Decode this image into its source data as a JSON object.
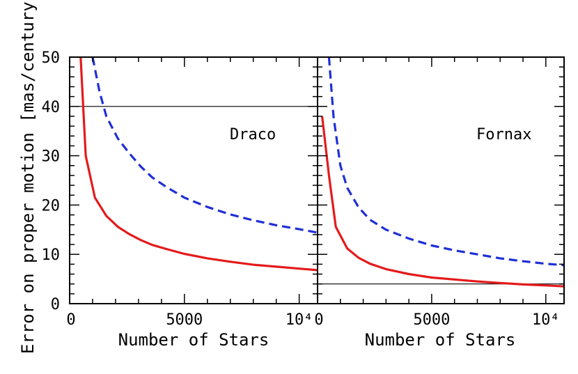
{
  "chart_data": {
    "type": "line",
    "shared": {
      "ylabel": "Error on proper motion [mas/century]",
      "ylim": [
        0,
        50
      ],
      "yticks": [
        0,
        10,
        20,
        30,
        40,
        50
      ],
      "ytick_labels": [
        "0",
        "10",
        "20",
        "30",
        "40",
        "50"
      ],
      "xlim": [
        0,
        10800
      ],
      "xticks": [
        0,
        5000,
        10000
      ],
      "xtick_labels_left": [
        "0",
        "5000",
        "10⁴"
      ],
      "xtick_labels_right": [
        "0",
        "5000",
        "10⁴"
      ],
      "xlabel": "Number of Stars"
    },
    "panels": [
      {
        "name": "Draco",
        "label": "Draco",
        "hline": 40,
        "series": [
          {
            "name": "solid-red",
            "color": "#e41a1c",
            "style": "solid",
            "points": [
              [
                480,
                50
              ],
              [
                700,
                30
              ],
              [
                1100,
                21.5
              ],
              [
                1600,
                17.8
              ],
              [
                2100,
                15.6
              ],
              [
                2600,
                14.1
              ],
              [
                3100,
                12.9
              ],
              [
                3600,
                11.9
              ],
              [
                4200,
                11.1
              ],
              [
                5000,
                10.1
              ],
              [
                6000,
                9.2
              ],
              [
                7000,
                8.5
              ],
              [
                8000,
                7.9
              ],
              [
                9000,
                7.5
              ],
              [
                10000,
                7.1
              ],
              [
                10800,
                6.8
              ]
            ]
          },
          {
            "name": "dashed-blue",
            "color": "#1f2fd6",
            "style": "dashed",
            "points": [
              [
                1000,
                50
              ],
              [
                1300,
                43
              ],
              [
                1600,
                38
              ],
              [
                2100,
                33.5
              ],
              [
                2600,
                30.5
              ],
              [
                3100,
                27.8
              ],
              [
                3600,
                25.6
              ],
              [
                4200,
                23.7
              ],
              [
                5000,
                21.5
              ],
              [
                6000,
                19.6
              ],
              [
                7000,
                18.1
              ],
              [
                8000,
                16.9
              ],
              [
                9000,
                15.9
              ],
              [
                10000,
                15.1
              ],
              [
                10800,
                14.4
              ]
            ]
          }
        ]
      },
      {
        "name": "Fornax",
        "label": "Fornax",
        "hline": 4,
        "series": [
          {
            "name": "solid-red",
            "color": "#e41a1c",
            "style": "solid",
            "points": [
              [
                200,
                38
              ],
              [
                500,
                26
              ],
              [
                800,
                15.6
              ],
              [
                1300,
                11.2
              ],
              [
                1800,
                9.3
              ],
              [
                2300,
                8.1
              ],
              [
                3000,
                7.0
              ],
              [
                4000,
                6.0
              ],
              [
                5000,
                5.3
              ],
              [
                6000,
                4.9
              ],
              [
                7000,
                4.5
              ],
              [
                8000,
                4.2
              ],
              [
                9000,
                3.9
              ],
              [
                10000,
                3.7
              ],
              [
                10800,
                3.5
              ]
            ]
          },
          {
            "name": "dashed-blue",
            "color": "#1f2fd6",
            "style": "dashed",
            "points": [
              [
                500,
                50
              ],
              [
                700,
                38
              ],
              [
                1000,
                28
              ],
              [
                1300,
                23.5
              ],
              [
                1800,
                19.5
              ],
              [
                2300,
                17.0
              ],
              [
                3000,
                15.0
              ],
              [
                4000,
                13.2
              ],
              [
                5000,
                11.8
              ],
              [
                6000,
                10.8
              ],
              [
                7000,
                10.0
              ],
              [
                8000,
                9.2
              ],
              [
                9000,
                8.6
              ],
              [
                10000,
                8.1
              ],
              [
                10800,
                7.8
              ]
            ]
          }
        ]
      }
    ]
  }
}
